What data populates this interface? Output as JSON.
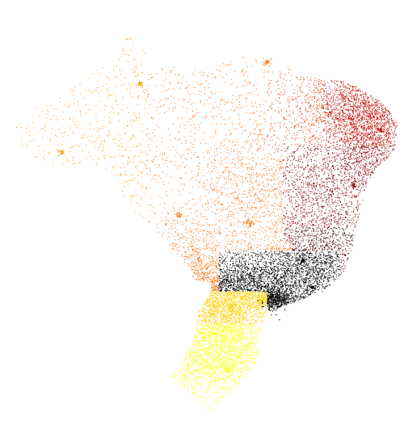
{
  "map": {
    "type": "dot-density-map",
    "region": "Brazil",
    "background_color": "#ffffff",
    "color_scale": [
      "#ffff00",
      "#ffd000",
      "#ff9900",
      "#ff6a00",
      "#e63a00",
      "#c01000",
      "#8a0000",
      "#4a0000",
      "#000000"
    ],
    "labels": []
  }
}
